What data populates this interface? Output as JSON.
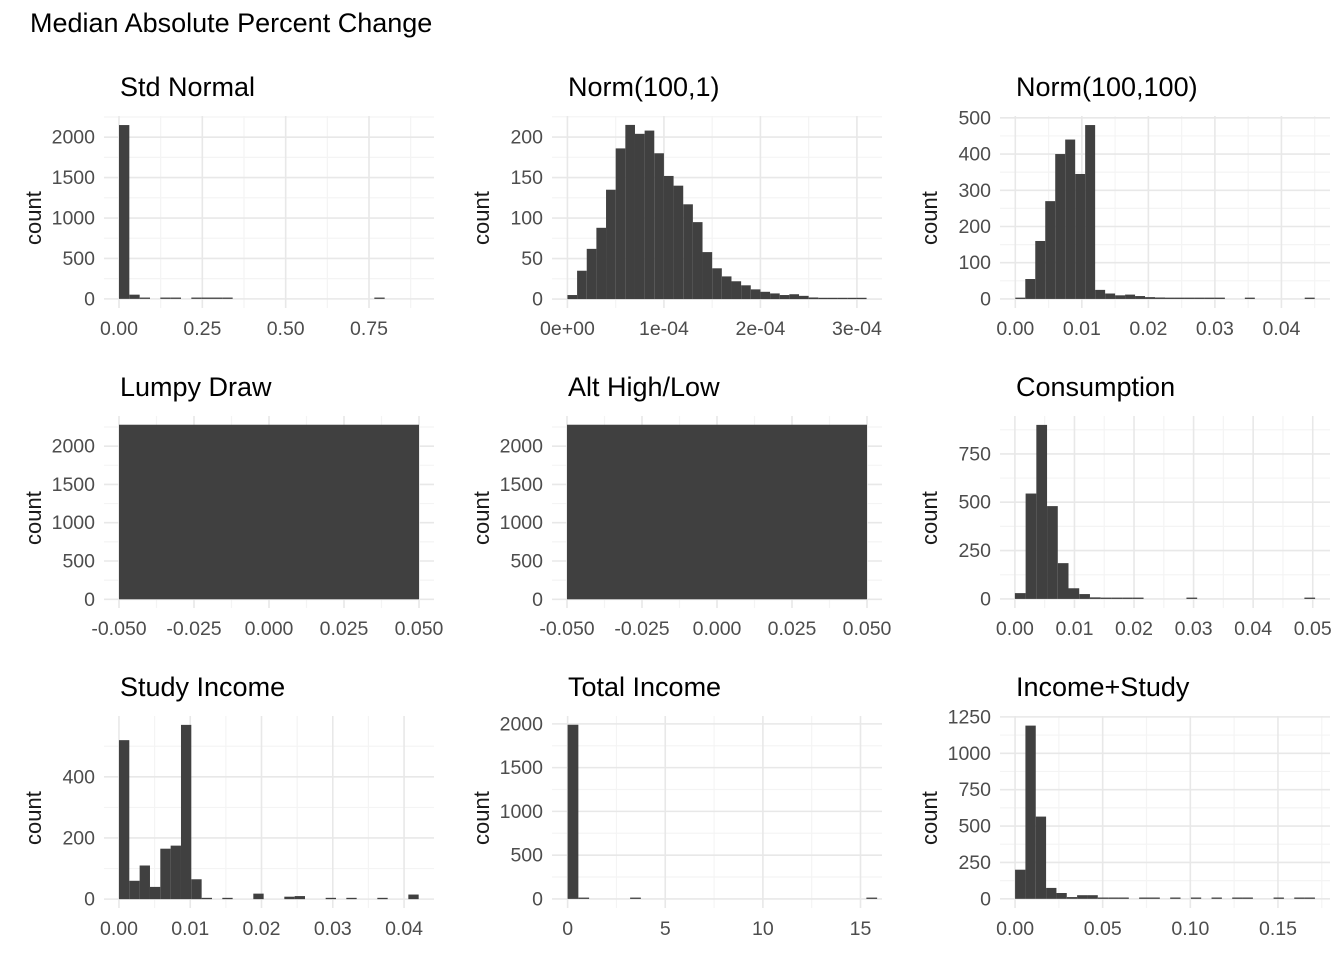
{
  "page_title": "Median Absolute Percent Change",
  "colors": {
    "background": "#ffffff",
    "bar": "#404040",
    "grid_major": "#e8e8e8",
    "grid_minor": "#f4f4f4",
    "axis_text": "#4d4d4d",
    "title_text": "#000000"
  },
  "chart_data": [
    {
      "type": "bar",
      "title": "Std Normal",
      "ylabel": "count",
      "xlim": [
        -0.045,
        0.945
      ],
      "ylim": [
        -113,
        2262
      ],
      "xticks": [
        0,
        0.25,
        0.5,
        0.75
      ],
      "xtick_labels": [
        "0.00",
        "0.25",
        "0.50",
        "0.75"
      ],
      "yticks": [
        0,
        500,
        1000,
        1500,
        2000
      ],
      "ytick_labels": [
        "0",
        "500",
        "1000",
        "1500",
        "2000"
      ],
      "binwidth": 0.031,
      "bars": [
        [
          0,
          2150
        ],
        [
          0.031,
          52
        ],
        [
          0.062,
          10
        ],
        [
          0.124,
          5
        ],
        [
          0.155,
          4
        ],
        [
          0.217,
          4
        ],
        [
          0.248,
          5
        ],
        [
          0.279,
          4
        ],
        [
          0.31,
          3
        ],
        [
          0.766,
          5
        ]
      ]
    },
    {
      "type": "bar",
      "title": "Norm(100,1)",
      "ylabel": "count",
      "xlim": [
        -1.6e-05,
        0.000326
      ],
      "ylim": [
        -11,
        226
      ],
      "xticks": [
        0,
        0.0001,
        0.0002,
        0.0003
      ],
      "xtick_labels": [
        "0e+00",
        "1e-04",
        "2e-04",
        "3e-04"
      ],
      "yticks": [
        0,
        50,
        100,
        150,
        200
      ],
      "ytick_labels": [
        "0",
        "50",
        "100",
        "150",
        "200"
      ],
      "binwidth": 1e-05,
      "bars": [
        [
          0,
          5
        ],
        [
          1e-05,
          35
        ],
        [
          2e-05,
          62
        ],
        [
          3e-05,
          88
        ],
        [
          4e-05,
          135
        ],
        [
          5e-05,
          186
        ],
        [
          6e-05,
          215
        ],
        [
          7e-05,
          204
        ],
        [
          8e-05,
          208
        ],
        [
          9e-05,
          180
        ],
        [
          0.0001,
          152
        ],
        [
          0.00011,
          140
        ],
        [
          0.00012,
          117
        ],
        [
          0.00013,
          95
        ],
        [
          0.00014,
          58
        ],
        [
          0.00015,
          38
        ],
        [
          0.00016,
          28
        ],
        [
          0.00017,
          22
        ],
        [
          0.00018,
          17
        ],
        [
          0.00019,
          12
        ],
        [
          0.0002,
          9
        ],
        [
          0.00021,
          7
        ],
        [
          0.00022,
          5
        ],
        [
          0.00023,
          6
        ],
        [
          0.00024,
          4
        ],
        [
          0.00025,
          2
        ],
        [
          0.00026,
          1
        ],
        [
          0.00027,
          1
        ],
        [
          0.00028,
          1
        ],
        [
          0.00029,
          1
        ],
        [
          0.0003,
          1
        ]
      ]
    },
    {
      "type": "bar",
      "title": "Norm(100,100)",
      "ylabel": "count",
      "xlim": [
        -0.0023,
        0.0473
      ],
      "ylim": [
        -25,
        505
      ],
      "xticks": [
        0,
        0.01,
        0.02,
        0.03,
        0.04
      ],
      "xtick_labels": [
        "0.00",
        "0.01",
        "0.02",
        "0.03",
        "0.04"
      ],
      "yticks": [
        0,
        100,
        200,
        300,
        400,
        500
      ],
      "ytick_labels": [
        "0",
        "100",
        "200",
        "300",
        "400",
        "500"
      ],
      "binwidth": 0.0015,
      "bars": [
        [
          0,
          3
        ],
        [
          0.0015,
          55
        ],
        [
          0.003,
          160
        ],
        [
          0.0045,
          270
        ],
        [
          0.006,
          400
        ],
        [
          0.0075,
          440
        ],
        [
          0.009,
          345
        ],
        [
          0.0105,
          480
        ],
        [
          0.012,
          25
        ],
        [
          0.0135,
          15
        ],
        [
          0.015,
          10
        ],
        [
          0.0165,
          12
        ],
        [
          0.018,
          8
        ],
        [
          0.0195,
          5
        ],
        [
          0.021,
          4
        ],
        [
          0.0225,
          3
        ],
        [
          0.024,
          2
        ],
        [
          0.0255,
          2
        ],
        [
          0.027,
          1
        ],
        [
          0.0285,
          2
        ],
        [
          0.03,
          1
        ],
        [
          0.0345,
          1
        ],
        [
          0.0435,
          2
        ]
      ]
    },
    {
      "type": "bar",
      "title": "Lumpy Draw",
      "ylabel": "count",
      "xlim": [
        -0.055,
        0.055
      ],
      "ylim": [
        -114,
        2394
      ],
      "xticks": [
        -0.05,
        -0.025,
        0,
        0.025,
        0.05
      ],
      "xtick_labels": [
        "-0.050",
        "-0.025",
        "0.000",
        "0.025",
        "0.050"
      ],
      "yticks": [
        0,
        500,
        1000,
        1500,
        2000
      ],
      "ytick_labels": [
        "0",
        "500",
        "1000",
        "1500",
        "2000"
      ],
      "binwidth": 0.1,
      "bars": [
        [
          -0.05,
          2280,
          0.1
        ]
      ]
    },
    {
      "type": "bar",
      "title": "Alt High/Low",
      "ylabel": "count",
      "xlim": [
        -0.055,
        0.055
      ],
      "ylim": [
        -114,
        2394
      ],
      "xticks": [
        -0.05,
        -0.025,
        0,
        0.025,
        0.05
      ],
      "xtick_labels": [
        "-0.050",
        "-0.025",
        "0.000",
        "0.025",
        "0.050"
      ],
      "yticks": [
        0,
        500,
        1000,
        1500,
        2000
      ],
      "ytick_labels": [
        "0",
        "500",
        "1000",
        "1500",
        "2000"
      ],
      "binwidth": 0.1,
      "bars": [
        [
          -0.05,
          2280,
          0.1
        ]
      ]
    },
    {
      "type": "bar",
      "title": "Consumption",
      "ylabel": "count",
      "xlim": [
        -0.0025,
        0.0529
      ],
      "ylim": [
        -47,
        946
      ],
      "xticks": [
        0,
        0.01,
        0.02,
        0.03,
        0.04,
        0.05
      ],
      "xtick_labels": [
        "0.00",
        "0.01",
        "0.02",
        "0.03",
        "0.04",
        "0.05"
      ],
      "yticks": [
        0,
        250,
        500,
        750
      ],
      "ytick_labels": [
        "0",
        "250",
        "500",
        "750"
      ],
      "binwidth": 0.0018,
      "bars": [
        [
          0,
          30
        ],
        [
          0.0018,
          545
        ],
        [
          0.0036,
          900
        ],
        [
          0.0054,
          480
        ],
        [
          0.0072,
          185
        ],
        [
          0.009,
          55
        ],
        [
          0.0108,
          25
        ],
        [
          0.0126,
          8
        ],
        [
          0.0144,
          3
        ],
        [
          0.0162,
          2
        ],
        [
          0.018,
          1
        ],
        [
          0.0198,
          1
        ],
        [
          0.0288,
          2
        ],
        [
          0.0486,
          2
        ]
      ]
    },
    {
      "type": "bar",
      "title": "Study Income",
      "ylabel": "count",
      "xlim": [
        -0.0021,
        0.0442
      ],
      "ylim": [
        -29,
        599
      ],
      "xticks": [
        0,
        0.01,
        0.02,
        0.03,
        0.04
      ],
      "xtick_labels": [
        "0.00",
        "0.01",
        "0.02",
        "0.03",
        "0.04"
      ],
      "yticks": [
        0,
        200,
        400
      ],
      "ytick_labels": [
        "0",
        "200",
        "400"
      ],
      "binwidth": 0.00145,
      "bars": [
        [
          0,
          520
        ],
        [
          0.00145,
          60
        ],
        [
          0.0029,
          110
        ],
        [
          0.00435,
          40
        ],
        [
          0.0058,
          165
        ],
        [
          0.00725,
          175
        ],
        [
          0.0087,
          570
        ],
        [
          0.01015,
          65
        ],
        [
          0.0116,
          3
        ],
        [
          0.0145,
          4
        ],
        [
          0.01885,
          18
        ],
        [
          0.0232,
          8
        ],
        [
          0.02465,
          10
        ],
        [
          0.029,
          2
        ],
        [
          0.0319,
          2
        ],
        [
          0.03625,
          2
        ],
        [
          0.0406,
          15
        ]
      ]
    },
    {
      "type": "bar",
      "title": "Total Income",
      "ylabel": "count",
      "xlim": [
        -0.8,
        16.1
      ],
      "ylim": [
        -104,
        2090
      ],
      "xticks": [
        0,
        5,
        10,
        15
      ],
      "xtick_labels": [
        "0",
        "5",
        "10",
        "15"
      ],
      "yticks": [
        0,
        500,
        1000,
        1500,
        2000
      ],
      "ytick_labels": [
        "0",
        "500",
        "1000",
        "1500",
        "2000"
      ],
      "binwidth": 0.55,
      "bars": [
        [
          0,
          1990
        ],
        [
          0.55,
          8
        ],
        [
          3.2,
          6
        ],
        [
          15.3,
          6
        ]
      ]
    },
    {
      "type": "bar",
      "title": "Income+Study",
      "ylabel": "count",
      "xlim": [
        -0.0086,
        0.1797
      ],
      "ylim": [
        -63,
        1256
      ],
      "xticks": [
        0,
        0.05,
        0.1,
        0.15
      ],
      "xtick_labels": [
        "0.00",
        "0.05",
        "0.10",
        "0.15"
      ],
      "yticks": [
        0,
        250,
        500,
        750,
        1000,
        1250
      ],
      "ytick_labels": [
        "0",
        "250",
        "500",
        "750",
        "1000",
        "1250"
      ],
      "binwidth": 0.0059,
      "bars": [
        [
          0,
          200
        ],
        [
          0.0059,
          1190
        ],
        [
          0.0118,
          565
        ],
        [
          0.0177,
          75
        ],
        [
          0.0236,
          40
        ],
        [
          0.0295,
          12
        ],
        [
          0.0354,
          25
        ],
        [
          0.0413,
          25
        ],
        [
          0.0472,
          5
        ],
        [
          0.0531,
          8
        ],
        [
          0.059,
          3
        ],
        [
          0.0708,
          2
        ],
        [
          0.0767,
          2
        ],
        [
          0.0885,
          1
        ],
        [
          0.1003,
          2
        ],
        [
          0.1121,
          1
        ],
        [
          0.1239,
          1
        ],
        [
          0.1298,
          1
        ],
        [
          0.1475,
          1
        ],
        [
          0.1593,
          1
        ],
        [
          0.1652,
          1
        ]
      ]
    }
  ]
}
